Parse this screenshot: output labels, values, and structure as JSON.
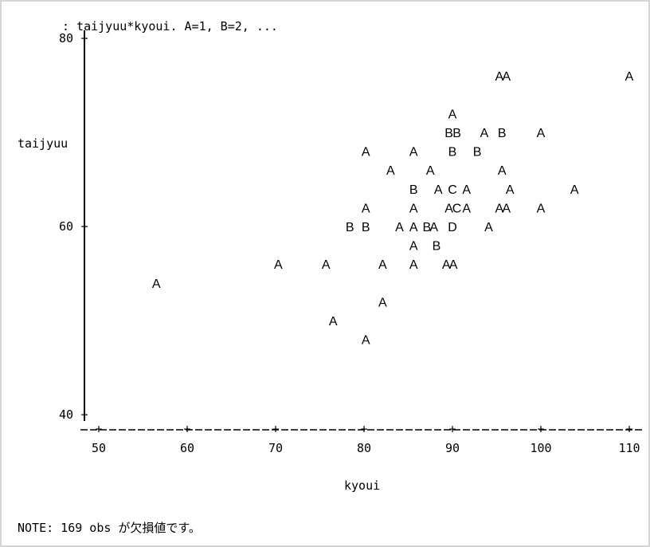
{
  "header_text": ": taijyuu*kyoui. A=1, B=2, ...",
  "note_text": "NOTE: 169 obs が欠損値です。",
  "colors": {
    "text": "#000000",
    "border": "#d4d4d4",
    "background": "#ffffff"
  },
  "chart_data": {
    "type": "scatter",
    "title": ": taijyuu*kyoui. A=1, B=2, ...",
    "xlabel": "kyoui",
    "ylabel": "taijyuu",
    "xlim": [
      48.5,
      110
    ],
    "ylim": [
      40,
      80
    ],
    "x_ticks": [
      50,
      60,
      70,
      80,
      90,
      100,
      110
    ],
    "y_ticks": [
      40,
      60,
      80
    ],
    "grid": false,
    "legend": "none",
    "marker_legend": "A=1, B=2, ...",
    "points": [
      {
        "x": 95.3,
        "y": 76,
        "label": "A"
      },
      {
        "x": 96.1,
        "y": 76,
        "label": "A"
      },
      {
        "x": 110,
        "y": 76,
        "label": "A"
      },
      {
        "x": 90.0,
        "y": 72,
        "label": "A"
      },
      {
        "x": 89.6,
        "y": 70,
        "label": "B"
      },
      {
        "x": 90.5,
        "y": 70,
        "label": "B"
      },
      {
        "x": 93.6,
        "y": 70,
        "label": "A"
      },
      {
        "x": 95.6,
        "y": 70,
        "label": "B"
      },
      {
        "x": 100.0,
        "y": 70,
        "label": "A"
      },
      {
        "x": 80.2,
        "y": 68,
        "label": "A"
      },
      {
        "x": 85.6,
        "y": 68,
        "label": "A"
      },
      {
        "x": 90.0,
        "y": 68,
        "label": "B"
      },
      {
        "x": 92.8,
        "y": 68,
        "label": "B"
      },
      {
        "x": 83.0,
        "y": 66,
        "label": "A"
      },
      {
        "x": 87.5,
        "y": 66,
        "label": "A"
      },
      {
        "x": 95.6,
        "y": 66,
        "label": "A"
      },
      {
        "x": 85.6,
        "y": 64,
        "label": "B"
      },
      {
        "x": 88.4,
        "y": 64,
        "label": "A"
      },
      {
        "x": 90.0,
        "y": 64,
        "label": "C"
      },
      {
        "x": 91.6,
        "y": 64,
        "label": "A"
      },
      {
        "x": 96.5,
        "y": 64,
        "label": "A"
      },
      {
        "x": 103.8,
        "y": 64,
        "label": "A"
      },
      {
        "x": 80.2,
        "y": 62,
        "label": "A"
      },
      {
        "x": 85.6,
        "y": 62,
        "label": "A"
      },
      {
        "x": 89.6,
        "y": 62,
        "label": "A"
      },
      {
        "x": 90.5,
        "y": 62,
        "label": "C"
      },
      {
        "x": 91.6,
        "y": 62,
        "label": "A"
      },
      {
        "x": 95.3,
        "y": 62,
        "label": "A"
      },
      {
        "x": 96.1,
        "y": 62,
        "label": "A"
      },
      {
        "x": 100.0,
        "y": 62,
        "label": "A"
      },
      {
        "x": 78.4,
        "y": 60,
        "label": "B"
      },
      {
        "x": 80.2,
        "y": 60,
        "label": "B"
      },
      {
        "x": 84.0,
        "y": 60,
        "label": "A"
      },
      {
        "x": 85.6,
        "y": 60,
        "label": "A"
      },
      {
        "x": 87.1,
        "y": 60,
        "label": "B"
      },
      {
        "x": 87.9,
        "y": 60,
        "label": "A"
      },
      {
        "x": 90.0,
        "y": 60,
        "label": "D"
      },
      {
        "x": 94.1,
        "y": 60,
        "label": "A"
      },
      {
        "x": 85.6,
        "y": 58,
        "label": "A"
      },
      {
        "x": 88.2,
        "y": 58,
        "label": "B"
      },
      {
        "x": 70.3,
        "y": 56,
        "label": "A"
      },
      {
        "x": 75.7,
        "y": 56,
        "label": "A"
      },
      {
        "x": 82.1,
        "y": 56,
        "label": "A"
      },
      {
        "x": 85.6,
        "y": 56,
        "label": "A"
      },
      {
        "x": 89.3,
        "y": 56,
        "label": "A"
      },
      {
        "x": 90.1,
        "y": 56,
        "label": "A"
      },
      {
        "x": 56.5,
        "y": 54,
        "label": "A"
      },
      {
        "x": 82.1,
        "y": 52,
        "label": "A"
      },
      {
        "x": 76.5,
        "y": 50,
        "label": "A"
      },
      {
        "x": 80.2,
        "y": 48,
        "label": "A"
      }
    ]
  }
}
